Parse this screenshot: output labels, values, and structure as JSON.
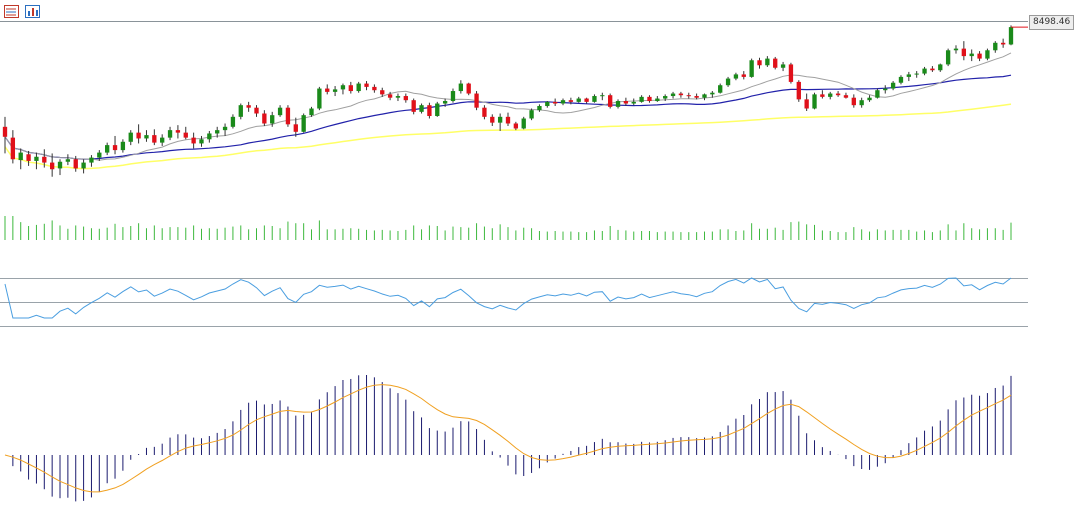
{
  "toolbar": {
    "buttons": [
      {
        "name": "list-view-icon",
        "color": "#c0392b"
      },
      {
        "name": "chart-settings-icon",
        "color": "#2b6fc0"
      }
    ]
  },
  "price_label": "8498.46",
  "colors": {
    "up": "#1a8a1a",
    "down": "#e0101a",
    "wick": "#333333",
    "ma_fast": "#a0a0a0",
    "ma_mid": "#2222aa",
    "ma_slow": "#ffff66",
    "volume": "#3cb83c",
    "rsi": "#4a9ee0",
    "rsi_levels": "#9aa3aa",
    "macd_hist": "#1a1a6e",
    "macd_signal": "#f0a020",
    "grid": "#8a9399"
  },
  "chart_data": {
    "type": "candlestick",
    "panels": [
      "price",
      "volume",
      "rsi",
      "macd"
    ],
    "price_range": [
      6300,
      8560
    ],
    "last_price": 8498.46,
    "candles": [
      [
        7300,
        7420,
        6980,
        7180
      ],
      [
        7170,
        7260,
        6860,
        6910
      ],
      [
        6900,
        7040,
        6790,
        6990
      ],
      [
        6970,
        7010,
        6830,
        6890
      ],
      [
        6890,
        6990,
        6790,
        6940
      ],
      [
        6940,
        7030,
        6810,
        6870
      ],
      [
        6870,
        6980,
        6700,
        6790
      ],
      [
        6800,
        6910,
        6720,
        6880
      ],
      [
        6880,
        6970,
        6840,
        6910
      ],
      [
        6910,
        6950,
        6760,
        6800
      ],
      [
        6800,
        6910,
        6740,
        6870
      ],
      [
        6870,
        6960,
        6820,
        6930
      ],
      [
        6930,
        7020,
        6890,
        6990
      ],
      [
        6990,
        7110,
        6960,
        7080
      ],
      [
        7080,
        7190,
        6970,
        7020
      ],
      [
        7020,
        7150,
        6990,
        7120
      ],
      [
        7120,
        7260,
        7080,
        7230
      ],
      [
        7230,
        7330,
        7100,
        7160
      ],
      [
        7160,
        7260,
        7120,
        7200
      ],
      [
        7200,
        7270,
        7080,
        7110
      ],
      [
        7110,
        7210,
        7070,
        7170
      ],
      [
        7170,
        7300,
        7140,
        7260
      ],
      [
        7260,
        7320,
        7160,
        7230
      ],
      [
        7230,
        7300,
        7150,
        7170
      ],
      [
        7170,
        7230,
        7040,
        7100
      ],
      [
        7100,
        7190,
        7060,
        7150
      ],
      [
        7150,
        7250,
        7110,
        7220
      ],
      [
        7220,
        7300,
        7170,
        7260
      ],
      [
        7260,
        7340,
        7190,
        7300
      ],
      [
        7300,
        7450,
        7280,
        7420
      ],
      [
        7420,
        7580,
        7390,
        7560
      ],
      [
        7560,
        7600,
        7480,
        7530
      ],
      [
        7530,
        7560,
        7420,
        7460
      ],
      [
        7460,
        7500,
        7310,
        7340
      ],
      [
        7340,
        7480,
        7300,
        7440
      ],
      [
        7440,
        7560,
        7420,
        7530
      ],
      [
        7530,
        7560,
        7300,
        7330
      ],
      [
        7330,
        7410,
        7180,
        7240
      ],
      [
        7240,
        7460,
        7230,
        7440
      ],
      [
        7440,
        7540,
        7420,
        7520
      ],
      [
        7520,
        7780,
        7500,
        7760
      ],
      [
        7760,
        7810,
        7690,
        7720
      ],
      [
        7720,
        7790,
        7670,
        7750
      ],
      [
        7750,
        7820,
        7690,
        7800
      ],
      [
        7800,
        7840,
        7700,
        7730
      ],
      [
        7730,
        7840,
        7710,
        7820
      ],
      [
        7820,
        7850,
        7740,
        7780
      ],
      [
        7780,
        7810,
        7710,
        7740
      ],
      [
        7740,
        7770,
        7660,
        7690
      ],
      [
        7690,
        7720,
        7620,
        7650
      ],
      [
        7650,
        7700,
        7610,
        7670
      ],
      [
        7670,
        7700,
        7590,
        7620
      ],
      [
        7620,
        7640,
        7450,
        7480
      ],
      [
        7480,
        7580,
        7460,
        7560
      ],
      [
        7560,
        7590,
        7400,
        7430
      ],
      [
        7430,
        7600,
        7420,
        7580
      ],
      [
        7580,
        7640,
        7540,
        7610
      ],
      [
        7610,
        7760,
        7590,
        7730
      ],
      [
        7730,
        7860,
        7700,
        7820
      ],
      [
        7820,
        7830,
        7680,
        7700
      ],
      [
        7700,
        7730,
        7500,
        7530
      ],
      [
        7530,
        7560,
        7390,
        7420
      ],
      [
        7420,
        7450,
        7310,
        7350
      ],
      [
        7350,
        7460,
        7250,
        7420
      ],
      [
        7420,
        7470,
        7310,
        7340
      ],
      [
        7340,
        7360,
        7260,
        7280
      ],
      [
        7280,
        7420,
        7270,
        7400
      ],
      [
        7400,
        7520,
        7380,
        7500
      ],
      [
        7500,
        7570,
        7480,
        7550
      ],
      [
        7550,
        7610,
        7530,
        7600
      ],
      [
        7600,
        7640,
        7550,
        7580
      ],
      [
        7580,
        7640,
        7560,
        7620
      ],
      [
        7620,
        7650,
        7570,
        7600
      ],
      [
        7600,
        7660,
        7590,
        7640
      ],
      [
        7640,
        7650,
        7580,
        7600
      ],
      [
        7600,
        7690,
        7590,
        7670
      ],
      [
        7670,
        7710,
        7620,
        7680
      ],
      [
        7680,
        7700,
        7520,
        7540
      ],
      [
        7540,
        7630,
        7520,
        7610
      ],
      [
        7610,
        7650,
        7550,
        7580
      ],
      [
        7580,
        7640,
        7560,
        7600
      ],
      [
        7600,
        7680,
        7590,
        7660
      ],
      [
        7660,
        7680,
        7590,
        7610
      ],
      [
        7610,
        7670,
        7600,
        7640
      ],
      [
        7640,
        7690,
        7610,
        7670
      ],
      [
        7670,
        7720,
        7640,
        7700
      ],
      [
        7700,
        7720,
        7650,
        7680
      ],
      [
        7680,
        7710,
        7640,
        7670
      ],
      [
        7670,
        7700,
        7630,
        7650
      ],
      [
        7650,
        7700,
        7620,
        7690
      ],
      [
        7690,
        7730,
        7650,
        7710
      ],
      [
        7710,
        7820,
        7700,
        7800
      ],
      [
        7800,
        7900,
        7780,
        7880
      ],
      [
        7880,
        7950,
        7860,
        7930
      ],
      [
        7930,
        7970,
        7870,
        7900
      ],
      [
        7900,
        8120,
        7890,
        8100
      ],
      [
        8100,
        8130,
        8000,
        8040
      ],
      [
        8040,
        8150,
        8020,
        8120
      ],
      [
        8120,
        8140,
        7990,
        8010
      ],
      [
        8010,
        8080,
        7970,
        8050
      ],
      [
        8050,
        8070,
        7820,
        7840
      ],
      [
        7840,
        7860,
        7600,
        7630
      ],
      [
        7630,
        7700,
        7490,
        7520
      ],
      [
        7520,
        7710,
        7510,
        7690
      ],
      [
        7690,
        7740,
        7640,
        7660
      ],
      [
        7660,
        7720,
        7630,
        7700
      ],
      [
        7700,
        7730,
        7660,
        7680
      ],
      [
        7680,
        7710,
        7640,
        7650
      ],
      [
        7650,
        7690,
        7530,
        7560
      ],
      [
        7560,
        7650,
        7530,
        7620
      ],
      [
        7620,
        7680,
        7600,
        7650
      ],
      [
        7650,
        7760,
        7640,
        7740
      ],
      [
        7740,
        7800,
        7700,
        7760
      ],
      [
        7760,
        7850,
        7740,
        7830
      ],
      [
        7830,
        7920,
        7810,
        7900
      ],
      [
        7900,
        7960,
        7850,
        7930
      ],
      [
        7930,
        7970,
        7890,
        7940
      ],
      [
        7940,
        8020,
        7920,
        8000
      ],
      [
        8000,
        8030,
        7960,
        7980
      ],
      [
        7980,
        8060,
        7960,
        8050
      ],
      [
        8050,
        8240,
        8030,
        8220
      ],
      [
        8220,
        8280,
        8180,
        8240
      ],
      [
        8240,
        8330,
        8100,
        8150
      ],
      [
        8150,
        8230,
        8090,
        8180
      ],
      [
        8180,
        8210,
        8090,
        8120
      ],
      [
        8120,
        8240,
        8100,
        8220
      ],
      [
        8220,
        8330,
        8190,
        8310
      ],
      [
        8310,
        8360,
        8250,
        8290
      ],
      [
        8290,
        8520,
        8280,
        8498.46
      ]
    ],
    "ma_fast_color": "#a0a0a0",
    "ma_mid_color": "#2222aa",
    "ma_slow_color": "#ffff66",
    "rsi_levels": [
      70,
      30
    ],
    "rsi_range": [
      0,
      100
    ]
  }
}
